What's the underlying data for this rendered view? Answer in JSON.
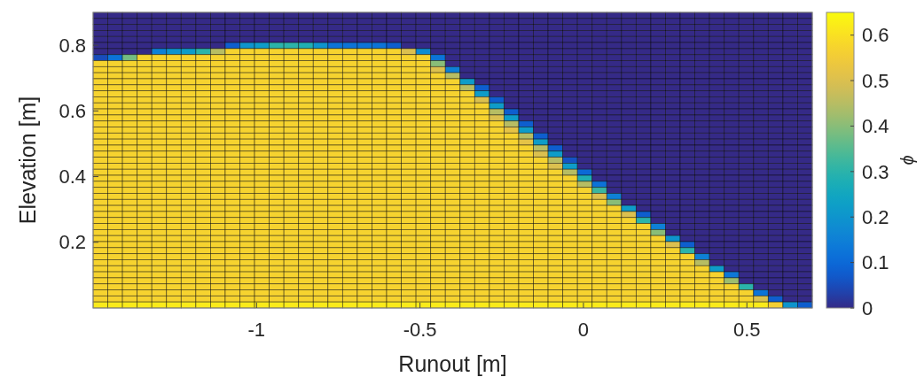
{
  "chart_data": {
    "type": "heatmap",
    "xlabel": "Runout [m]",
    "ylabel": "Elevation [m]",
    "clabel": "ϕ",
    "xlim": [
      -1.5,
      0.7
    ],
    "xticks": [
      -1,
      -0.5,
      0,
      0.5
    ],
    "ylim": [
      0,
      0.9
    ],
    "yticks": [
      0.2,
      0.4,
      0.6,
      0.8
    ],
    "clim": [
      0,
      0.65
    ],
    "cticks": [
      0,
      0.1,
      0.2,
      0.3,
      0.4,
      0.5,
      0.6
    ],
    "cells": [
      [
        0,
        0,
        0,
        0,
        0,
        0,
        0,
        0,
        0,
        0,
        0,
        0,
        0,
        0,
        0,
        0,
        0,
        0,
        0,
        0,
        0,
        0,
        0,
        0,
        0,
        0,
        0,
        0,
        0,
        0,
        0,
        0,
        0,
        0,
        0,
        0,
        0,
        0,
        0,
        0,
        0,
        0,
        0,
        0,
        0,
        0,
        0,
        0,
        0
      ],
      [
        0,
        0,
        0,
        0,
        0,
        0,
        0,
        0,
        0,
        0,
        0,
        0,
        0,
        0,
        0,
        0,
        0,
        0,
        0,
        0,
        0,
        0,
        0,
        0,
        0,
        0,
        0,
        0,
        0,
        0,
        0,
        0,
        0,
        0,
        0,
        0,
        0,
        0,
        0,
        0,
        0,
        0,
        0,
        0,
        0,
        0,
        0,
        0,
        0
      ],
      [
        0,
        0,
        0,
        0,
        0,
        0,
        0,
        0,
        0,
        0,
        0,
        0,
        0,
        0,
        0,
        0,
        0,
        0,
        0,
        0,
        0,
        0,
        0,
        0,
        0,
        0,
        0,
        0,
        0,
        0,
        0,
        0,
        0,
        0,
        0,
        0,
        0,
        0,
        0,
        0,
        0,
        0,
        0,
        0,
        0,
        0,
        0,
        0,
        0
      ],
      [
        0,
        0,
        0,
        0,
        0,
        0,
        0,
        0,
        0,
        0,
        0,
        0,
        0,
        0,
        0,
        0,
        0,
        0,
        0,
        0,
        0,
        0,
        0,
        0,
        0,
        0,
        0,
        0,
        0,
        0,
        0,
        0,
        0,
        0,
        0,
        0,
        0,
        0,
        0,
        0,
        0,
        0,
        0,
        0,
        0,
        0,
        0,
        0,
        0
      ],
      [
        0,
        0,
        0,
        0,
        0,
        0,
        0,
        0,
        0,
        0,
        0,
        0,
        0,
        0,
        0,
        0,
        0,
        0,
        0,
        0,
        0,
        0,
        0,
        0,
        0,
        0,
        0,
        0,
        0,
        0,
        0,
        0,
        0,
        0,
        0,
        0,
        0,
        0,
        0,
        0,
        0,
        0,
        0,
        0,
        0,
        0,
        0,
        0,
        0
      ],
      [
        0,
        0,
        0,
        0,
        0,
        0,
        0,
        0,
        0,
        0.08,
        0.2,
        0.22,
        0.3,
        0.3,
        0.28,
        0.2,
        0.12,
        0.12,
        0.12,
        0.12,
        0.08,
        0,
        0,
        0,
        0,
        0,
        0,
        0,
        0,
        0,
        0,
        0,
        0,
        0,
        0,
        0,
        0,
        0,
        0,
        0,
        0,
        0,
        0,
        0,
        0,
        0,
        0,
        0,
        0
      ],
      [
        0,
        0,
        0,
        0,
        0.15,
        0.2,
        0.22,
        0.3,
        0.45,
        0.57,
        0.57,
        0.57,
        0.57,
        0.57,
        0.57,
        0.57,
        0.57,
        0.57,
        0.57,
        0.57,
        0.57,
        0.5,
        0.18,
        0,
        0,
        0,
        0,
        0,
        0,
        0,
        0,
        0,
        0,
        0,
        0,
        0,
        0,
        0,
        0,
        0,
        0,
        0,
        0,
        0,
        0,
        0,
        0,
        0,
        0
      ],
      [
        0.05,
        0.12,
        0.38,
        0.57,
        0.57,
        0.57,
        0.57,
        0.57,
        0.57,
        0.57,
        0.57,
        0.57,
        0.57,
        0.57,
        0.57,
        0.57,
        0.57,
        0.57,
        0.57,
        0.57,
        0.57,
        0.57,
        0.57,
        0.12,
        0,
        0,
        0,
        0,
        0,
        0,
        0,
        0,
        0,
        0,
        0,
        0,
        0,
        0,
        0,
        0,
        0,
        0,
        0,
        0,
        0,
        0,
        0,
        0,
        0
      ],
      [
        0.57,
        0.57,
        0.57,
        0.57,
        0.57,
        0.57,
        0.57,
        0.57,
        0.57,
        0.57,
        0.57,
        0.57,
        0.57,
        0.57,
        0.57,
        0.57,
        0.57,
        0.57,
        0.57,
        0.57,
        0.57,
        0.57,
        0.57,
        0.4,
        0,
        0,
        0,
        0,
        0,
        0,
        0,
        0,
        0,
        0,
        0,
        0,
        0,
        0,
        0,
        0,
        0,
        0,
        0,
        0,
        0,
        0,
        0,
        0,
        0
      ],
      [
        0.57,
        0.57,
        0.57,
        0.57,
        0.57,
        0.57,
        0.57,
        0.57,
        0.57,
        0.57,
        0.57,
        0.57,
        0.57,
        0.57,
        0.57,
        0.57,
        0.57,
        0.57,
        0.57,
        0.57,
        0.57,
        0.57,
        0.57,
        0.5,
        0.15,
        0,
        0,
        0,
        0,
        0,
        0,
        0,
        0,
        0,
        0,
        0,
        0,
        0,
        0,
        0,
        0,
        0,
        0,
        0,
        0,
        0,
        0,
        0,
        0
      ],
      [
        0.57,
        0.57,
        0.57,
        0.57,
        0.57,
        0.57,
        0.57,
        0.57,
        0.57,
        0.57,
        0.57,
        0.57,
        0.57,
        0.57,
        0.57,
        0.57,
        0.57,
        0.57,
        0.57,
        0.57,
        0.57,
        0.57,
        0.57,
        0.57,
        0.45,
        0,
        0,
        0,
        0,
        0,
        0,
        0,
        0,
        0,
        0,
        0,
        0,
        0,
        0,
        0,
        0,
        0,
        0,
        0,
        0,
        0,
        0,
        0,
        0
      ],
      [
        0.57,
        0.57,
        0.57,
        0.57,
        0.57,
        0.57,
        0.57,
        0.57,
        0.57,
        0.57,
        0.57,
        0.57,
        0.57,
        0.57,
        0.57,
        0.57,
        0.57,
        0.57,
        0.57,
        0.57,
        0.57,
        0.57,
        0.57,
        0.57,
        0.57,
        0.22,
        0,
        0,
        0,
        0,
        0,
        0,
        0,
        0,
        0,
        0,
        0,
        0,
        0,
        0,
        0,
        0,
        0,
        0,
        0,
        0,
        0,
        0,
        0
      ],
      [
        0.57,
        0.57,
        0.57,
        0.57,
        0.57,
        0.57,
        0.57,
        0.57,
        0.57,
        0.57,
        0.57,
        0.57,
        0.57,
        0.57,
        0.57,
        0.57,
        0.57,
        0.57,
        0.57,
        0.57,
        0.57,
        0.57,
        0.57,
        0.57,
        0.57,
        0.45,
        0.08,
        0,
        0,
        0,
        0,
        0,
        0,
        0,
        0,
        0,
        0,
        0,
        0,
        0,
        0,
        0,
        0,
        0,
        0,
        0,
        0,
        0,
        0
      ],
      [
        0.57,
        0.57,
        0.57,
        0.57,
        0.57,
        0.57,
        0.57,
        0.57,
        0.57,
        0.57,
        0.57,
        0.57,
        0.57,
        0.57,
        0.57,
        0.57,
        0.57,
        0.57,
        0.57,
        0.57,
        0.57,
        0.57,
        0.57,
        0.57,
        0.57,
        0.57,
        0.22,
        0,
        0,
        0,
        0,
        0,
        0,
        0,
        0,
        0,
        0,
        0,
        0,
        0,
        0,
        0,
        0,
        0,
        0,
        0,
        0,
        0,
        0
      ],
      [
        0.57,
        0.57,
        0.57,
        0.57,
        0.57,
        0.57,
        0.57,
        0.57,
        0.57,
        0.57,
        0.57,
        0.57,
        0.57,
        0.57,
        0.57,
        0.57,
        0.57,
        0.57,
        0.57,
        0.57,
        0.57,
        0.57,
        0.57,
        0.57,
        0.57,
        0.57,
        0.5,
        0.08,
        0,
        0,
        0,
        0,
        0,
        0,
        0,
        0,
        0,
        0,
        0,
        0,
        0,
        0,
        0,
        0,
        0,
        0,
        0,
        0,
        0
      ],
      [
        0.57,
        0.57,
        0.57,
        0.57,
        0.57,
        0.57,
        0.57,
        0.57,
        0.57,
        0.57,
        0.57,
        0.57,
        0.57,
        0.57,
        0.57,
        0.57,
        0.57,
        0.57,
        0.57,
        0.57,
        0.57,
        0.57,
        0.57,
        0.57,
        0.57,
        0.57,
        0.57,
        0.22,
        0,
        0,
        0,
        0,
        0,
        0,
        0,
        0,
        0,
        0,
        0,
        0,
        0,
        0,
        0,
        0,
        0,
        0,
        0,
        0,
        0
      ],
      [
        0.57,
        0.57,
        0.57,
        0.57,
        0.57,
        0.57,
        0.57,
        0.57,
        0.57,
        0.57,
        0.57,
        0.57,
        0.57,
        0.57,
        0.57,
        0.57,
        0.57,
        0.57,
        0.57,
        0.57,
        0.57,
        0.57,
        0.57,
        0.57,
        0.57,
        0.57,
        0.57,
        0.45,
        0.08,
        0,
        0,
        0,
        0,
        0,
        0,
        0,
        0,
        0,
        0,
        0,
        0,
        0,
        0,
        0,
        0,
        0,
        0,
        0,
        0
      ],
      [
        0.57,
        0.57,
        0.57,
        0.57,
        0.57,
        0.57,
        0.57,
        0.57,
        0.57,
        0.57,
        0.57,
        0.57,
        0.57,
        0.57,
        0.57,
        0.57,
        0.57,
        0.57,
        0.57,
        0.57,
        0.57,
        0.57,
        0.57,
        0.57,
        0.57,
        0.57,
        0.57,
        0.5,
        0.22,
        0,
        0,
        0,
        0,
        0,
        0,
        0,
        0,
        0,
        0,
        0,
        0,
        0,
        0,
        0,
        0,
        0,
        0,
        0,
        0
      ],
      [
        0.57,
        0.57,
        0.57,
        0.57,
        0.57,
        0.57,
        0.57,
        0.57,
        0.57,
        0.57,
        0.57,
        0.57,
        0.57,
        0.57,
        0.57,
        0.57,
        0.57,
        0.57,
        0.57,
        0.57,
        0.57,
        0.57,
        0.57,
        0.57,
        0.57,
        0.57,
        0.57,
        0.57,
        0.45,
        0.08,
        0,
        0,
        0,
        0,
        0,
        0,
        0,
        0,
        0,
        0,
        0,
        0,
        0,
        0,
        0,
        0,
        0,
        0,
        0
      ],
      [
        0.57,
        0.57,
        0.57,
        0.57,
        0.57,
        0.57,
        0.57,
        0.57,
        0.57,
        0.57,
        0.57,
        0.57,
        0.57,
        0.57,
        0.57,
        0.57,
        0.57,
        0.57,
        0.57,
        0.57,
        0.57,
        0.57,
        0.57,
        0.57,
        0.57,
        0.57,
        0.57,
        0.57,
        0.52,
        0.22,
        0,
        0,
        0,
        0,
        0,
        0,
        0,
        0,
        0,
        0,
        0,
        0,
        0,
        0,
        0,
        0,
        0,
        0,
        0
      ],
      [
        0.57,
        0.57,
        0.57,
        0.57,
        0.57,
        0.57,
        0.57,
        0.57,
        0.57,
        0.57,
        0.57,
        0.57,
        0.57,
        0.57,
        0.57,
        0.57,
        0.57,
        0.57,
        0.57,
        0.57,
        0.57,
        0.57,
        0.57,
        0.57,
        0.57,
        0.57,
        0.57,
        0.57,
        0.57,
        0.45,
        0.08,
        0,
        0,
        0,
        0,
        0,
        0,
        0,
        0,
        0,
        0,
        0,
        0,
        0,
        0,
        0,
        0,
        0,
        0
      ],
      [
        0.57,
        0.57,
        0.57,
        0.57,
        0.57,
        0.57,
        0.57,
        0.57,
        0.57,
        0.57,
        0.57,
        0.57,
        0.57,
        0.57,
        0.57,
        0.57,
        0.57,
        0.57,
        0.57,
        0.57,
        0.57,
        0.57,
        0.57,
        0.57,
        0.57,
        0.57,
        0.57,
        0.57,
        0.57,
        0.52,
        0.22,
        0,
        0,
        0,
        0,
        0,
        0,
        0,
        0,
        0,
        0,
        0,
        0,
        0,
        0,
        0,
        0,
        0,
        0
      ],
      [
        0.57,
        0.57,
        0.57,
        0.57,
        0.57,
        0.57,
        0.57,
        0.57,
        0.57,
        0.57,
        0.57,
        0.57,
        0.57,
        0.57,
        0.57,
        0.57,
        0.57,
        0.57,
        0.57,
        0.57,
        0.57,
        0.57,
        0.57,
        0.57,
        0.57,
        0.57,
        0.57,
        0.57,
        0.57,
        0.57,
        0.45,
        0.08,
        0,
        0,
        0,
        0,
        0,
        0,
        0,
        0,
        0,
        0,
        0,
        0,
        0,
        0,
        0,
        0,
        0
      ],
      [
        0.57,
        0.57,
        0.57,
        0.57,
        0.57,
        0.57,
        0.57,
        0.57,
        0.57,
        0.57,
        0.57,
        0.57,
        0.57,
        0.57,
        0.57,
        0.57,
        0.57,
        0.57,
        0.57,
        0.57,
        0.57,
        0.57,
        0.57,
        0.57,
        0.57,
        0.57,
        0.57,
        0.57,
        0.57,
        0.57,
        0.5,
        0.22,
        0,
        0,
        0,
        0,
        0,
        0,
        0,
        0,
        0,
        0,
        0,
        0,
        0,
        0,
        0,
        0,
        0
      ],
      [
        0.57,
        0.57,
        0.57,
        0.57,
        0.57,
        0.57,
        0.57,
        0.57,
        0.57,
        0.57,
        0.57,
        0.57,
        0.57,
        0.57,
        0.57,
        0.57,
        0.57,
        0.57,
        0.57,
        0.57,
        0.57,
        0.57,
        0.57,
        0.57,
        0.57,
        0.57,
        0.57,
        0.57,
        0.57,
        0.57,
        0.57,
        0.45,
        0.06,
        0,
        0,
        0,
        0,
        0,
        0,
        0,
        0,
        0,
        0,
        0,
        0,
        0,
        0,
        0,
        0
      ],
      [
        0.57,
        0.57,
        0.57,
        0.57,
        0.57,
        0.57,
        0.57,
        0.57,
        0.57,
        0.57,
        0.57,
        0.57,
        0.57,
        0.57,
        0.57,
        0.57,
        0.57,
        0.57,
        0.57,
        0.57,
        0.57,
        0.57,
        0.57,
        0.57,
        0.57,
        0.57,
        0.57,
        0.57,
        0.57,
        0.57,
        0.57,
        0.5,
        0.22,
        0,
        0,
        0,
        0,
        0,
        0,
        0,
        0,
        0,
        0,
        0,
        0,
        0,
        0,
        0,
        0
      ],
      [
        0.57,
        0.57,
        0.57,
        0.57,
        0.57,
        0.57,
        0.57,
        0.57,
        0.57,
        0.57,
        0.57,
        0.57,
        0.57,
        0.57,
        0.57,
        0.57,
        0.57,
        0.57,
        0.57,
        0.57,
        0.57,
        0.57,
        0.57,
        0.57,
        0.57,
        0.57,
        0.57,
        0.57,
        0.57,
        0.57,
        0.57,
        0.57,
        0.45,
        0.1,
        0,
        0,
        0,
        0,
        0,
        0,
        0,
        0,
        0,
        0,
        0,
        0,
        0,
        0,
        0
      ],
      [
        0.57,
        0.57,
        0.57,
        0.57,
        0.57,
        0.57,
        0.57,
        0.57,
        0.57,
        0.57,
        0.57,
        0.57,
        0.57,
        0.57,
        0.57,
        0.57,
        0.57,
        0.57,
        0.57,
        0.57,
        0.57,
        0.57,
        0.57,
        0.57,
        0.57,
        0.57,
        0.57,
        0.57,
        0.57,
        0.57,
        0.57,
        0.57,
        0.57,
        0.28,
        0,
        0,
        0,
        0,
        0,
        0,
        0,
        0,
        0,
        0,
        0,
        0,
        0,
        0,
        0
      ],
      [
        0.57,
        0.57,
        0.57,
        0.57,
        0.57,
        0.57,
        0.57,
        0.57,
        0.57,
        0.57,
        0.57,
        0.57,
        0.57,
        0.57,
        0.57,
        0.57,
        0.57,
        0.57,
        0.57,
        0.57,
        0.57,
        0.57,
        0.57,
        0.57,
        0.57,
        0.57,
        0.57,
        0.57,
        0.57,
        0.57,
        0.57,
        0.57,
        0.57,
        0.45,
        0.12,
        0,
        0,
        0,
        0,
        0,
        0,
        0,
        0,
        0,
        0,
        0,
        0,
        0,
        0
      ],
      [
        0.57,
        0.57,
        0.57,
        0.57,
        0.57,
        0.57,
        0.57,
        0.57,
        0.57,
        0.57,
        0.57,
        0.57,
        0.57,
        0.57,
        0.57,
        0.57,
        0.57,
        0.57,
        0.57,
        0.57,
        0.57,
        0.57,
        0.57,
        0.57,
        0.57,
        0.57,
        0.57,
        0.57,
        0.57,
        0.57,
        0.57,
        0.57,
        0.57,
        0.57,
        0.32,
        0,
        0,
        0,
        0,
        0,
        0,
        0,
        0,
        0,
        0,
        0,
        0,
        0,
        0
      ],
      [
        0.57,
        0.57,
        0.57,
        0.57,
        0.57,
        0.57,
        0.57,
        0.57,
        0.57,
        0.57,
        0.57,
        0.57,
        0.57,
        0.57,
        0.57,
        0.57,
        0.57,
        0.57,
        0.57,
        0.57,
        0.57,
        0.57,
        0.57,
        0.57,
        0.57,
        0.57,
        0.57,
        0.57,
        0.57,
        0.57,
        0.57,
        0.57,
        0.57,
        0.57,
        0.5,
        0.15,
        0,
        0,
        0,
        0,
        0,
        0,
        0,
        0,
        0,
        0,
        0,
        0,
        0
      ],
      [
        0.57,
        0.57,
        0.57,
        0.57,
        0.57,
        0.57,
        0.57,
        0.57,
        0.57,
        0.57,
        0.57,
        0.57,
        0.57,
        0.57,
        0.57,
        0.57,
        0.57,
        0.57,
        0.57,
        0.57,
        0.57,
        0.57,
        0.57,
        0.57,
        0.57,
        0.57,
        0.57,
        0.57,
        0.57,
        0.57,
        0.57,
        0.57,
        0.57,
        0.57,
        0.57,
        0.4,
        0,
        0,
        0,
        0,
        0,
        0,
        0,
        0,
        0,
        0,
        0,
        0,
        0
      ],
      [
        0.57,
        0.57,
        0.57,
        0.57,
        0.57,
        0.57,
        0.57,
        0.57,
        0.57,
        0.57,
        0.57,
        0.57,
        0.57,
        0.57,
        0.57,
        0.57,
        0.57,
        0.57,
        0.57,
        0.57,
        0.57,
        0.57,
        0.57,
        0.57,
        0.57,
        0.57,
        0.57,
        0.57,
        0.57,
        0.57,
        0.57,
        0.57,
        0.57,
        0.57,
        0.57,
        0.57,
        0.22,
        0,
        0,
        0,
        0,
        0,
        0,
        0,
        0,
        0,
        0,
        0,
        0
      ],
      [
        0.57,
        0.57,
        0.57,
        0.57,
        0.57,
        0.57,
        0.57,
        0.57,
        0.57,
        0.57,
        0.57,
        0.57,
        0.57,
        0.57,
        0.57,
        0.57,
        0.57,
        0.57,
        0.57,
        0.57,
        0.57,
        0.57,
        0.57,
        0.57,
        0.57,
        0.57,
        0.57,
        0.57,
        0.57,
        0.57,
        0.57,
        0.57,
        0.57,
        0.57,
        0.57,
        0.57,
        0.5,
        0.08,
        0,
        0,
        0,
        0,
        0,
        0,
        0,
        0,
        0,
        0,
        0
      ],
      [
        0.57,
        0.57,
        0.57,
        0.57,
        0.57,
        0.57,
        0.57,
        0.57,
        0.57,
        0.57,
        0.57,
        0.57,
        0.57,
        0.57,
        0.57,
        0.57,
        0.57,
        0.57,
        0.57,
        0.57,
        0.57,
        0.57,
        0.57,
        0.57,
        0.57,
        0.57,
        0.57,
        0.57,
        0.57,
        0.57,
        0.57,
        0.57,
        0.57,
        0.57,
        0.57,
        0.57,
        0.57,
        0.3,
        0,
        0,
        0,
        0,
        0,
        0,
        0,
        0,
        0,
        0,
        0
      ],
      [
        0.57,
        0.57,
        0.57,
        0.57,
        0.57,
        0.57,
        0.57,
        0.57,
        0.57,
        0.57,
        0.57,
        0.57,
        0.57,
        0.57,
        0.57,
        0.57,
        0.57,
        0.57,
        0.57,
        0.57,
        0.57,
        0.57,
        0.57,
        0.57,
        0.57,
        0.57,
        0.57,
        0.57,
        0.57,
        0.57,
        0.57,
        0.57,
        0.57,
        0.57,
        0.57,
        0.57,
        0.57,
        0.57,
        0.15,
        0,
        0,
        0,
        0,
        0,
        0,
        0,
        0,
        0,
        0
      ],
      [
        0.57,
        0.57,
        0.57,
        0.57,
        0.57,
        0.57,
        0.57,
        0.57,
        0.57,
        0.57,
        0.57,
        0.57,
        0.57,
        0.57,
        0.57,
        0.57,
        0.57,
        0.57,
        0.57,
        0.57,
        0.57,
        0.57,
        0.57,
        0.57,
        0.57,
        0.57,
        0.57,
        0.57,
        0.57,
        0.57,
        0.57,
        0.57,
        0.57,
        0.57,
        0.57,
        0.57,
        0.57,
        0.57,
        0.4,
        0,
        0,
        0,
        0,
        0,
        0,
        0,
        0,
        0,
        0
      ],
      [
        0.57,
        0.57,
        0.57,
        0.57,
        0.57,
        0.57,
        0.57,
        0.57,
        0.57,
        0.57,
        0.57,
        0.57,
        0.57,
        0.57,
        0.57,
        0.57,
        0.57,
        0.57,
        0.57,
        0.57,
        0.57,
        0.57,
        0.57,
        0.57,
        0.57,
        0.57,
        0.57,
        0.57,
        0.57,
        0.57,
        0.57,
        0.57,
        0.57,
        0.57,
        0.57,
        0.57,
        0.57,
        0.57,
        0.57,
        0.2,
        0,
        0,
        0,
        0,
        0,
        0,
        0,
        0,
        0
      ],
      [
        0.57,
        0.57,
        0.57,
        0.57,
        0.57,
        0.57,
        0.57,
        0.57,
        0.57,
        0.57,
        0.57,
        0.57,
        0.57,
        0.57,
        0.57,
        0.57,
        0.57,
        0.57,
        0.57,
        0.57,
        0.57,
        0.57,
        0.57,
        0.57,
        0.57,
        0.57,
        0.57,
        0.57,
        0.57,
        0.57,
        0.57,
        0.57,
        0.57,
        0.57,
        0.57,
        0.57,
        0.57,
        0.57,
        0.57,
        0.5,
        0.08,
        0,
        0,
        0,
        0,
        0,
        0,
        0,
        0
      ],
      [
        0.57,
        0.57,
        0.57,
        0.57,
        0.57,
        0.57,
        0.57,
        0.57,
        0.57,
        0.57,
        0.57,
        0.57,
        0.57,
        0.57,
        0.57,
        0.57,
        0.57,
        0.57,
        0.57,
        0.57,
        0.57,
        0.57,
        0.57,
        0.57,
        0.57,
        0.57,
        0.57,
        0.57,
        0.57,
        0.57,
        0.57,
        0.57,
        0.57,
        0.57,
        0.57,
        0.57,
        0.57,
        0.57,
        0.57,
        0.57,
        0.3,
        0,
        0,
        0,
        0,
        0,
        0,
        0,
        0
      ],
      [
        0.57,
        0.57,
        0.57,
        0.57,
        0.57,
        0.57,
        0.57,
        0.57,
        0.57,
        0.57,
        0.57,
        0.57,
        0.57,
        0.57,
        0.57,
        0.57,
        0.57,
        0.57,
        0.57,
        0.57,
        0.57,
        0.57,
        0.57,
        0.57,
        0.57,
        0.57,
        0.57,
        0.57,
        0.57,
        0.57,
        0.57,
        0.57,
        0.57,
        0.57,
        0.57,
        0.57,
        0.57,
        0.57,
        0.57,
        0.57,
        0.57,
        0.15,
        0,
        0,
        0,
        0,
        0,
        0,
        0
      ],
      [
        0.57,
        0.57,
        0.57,
        0.57,
        0.57,
        0.57,
        0.57,
        0.57,
        0.57,
        0.57,
        0.57,
        0.57,
        0.57,
        0.57,
        0.57,
        0.57,
        0.57,
        0.57,
        0.57,
        0.57,
        0.57,
        0.57,
        0.57,
        0.57,
        0.57,
        0.57,
        0.57,
        0.57,
        0.57,
        0.57,
        0.57,
        0.57,
        0.57,
        0.57,
        0.57,
        0.57,
        0.57,
        0.57,
        0.57,
        0.57,
        0.57,
        0.45,
        0,
        0,
        0,
        0,
        0,
        0,
        0
      ],
      [
        0.57,
        0.57,
        0.57,
        0.57,
        0.57,
        0.57,
        0.57,
        0.57,
        0.57,
        0.57,
        0.57,
        0.57,
        0.57,
        0.57,
        0.57,
        0.57,
        0.57,
        0.57,
        0.57,
        0.57,
        0.57,
        0.57,
        0.57,
        0.57,
        0.57,
        0.57,
        0.57,
        0.57,
        0.57,
        0.57,
        0.57,
        0.57,
        0.57,
        0.57,
        0.57,
        0.57,
        0.57,
        0.57,
        0.57,
        0.57,
        0.57,
        0.57,
        0.22,
        0,
        0,
        0,
        0,
        0,
        0
      ],
      [
        0.57,
        0.57,
        0.57,
        0.57,
        0.57,
        0.57,
        0.57,
        0.57,
        0.57,
        0.57,
        0.57,
        0.57,
        0.57,
        0.57,
        0.57,
        0.57,
        0.57,
        0.57,
        0.57,
        0.57,
        0.57,
        0.57,
        0.57,
        0.57,
        0.57,
        0.57,
        0.57,
        0.57,
        0.57,
        0.57,
        0.57,
        0.57,
        0.57,
        0.57,
        0.57,
        0.57,
        0.57,
        0.57,
        0.57,
        0.57,
        0.57,
        0.57,
        0.57,
        0.13,
        0,
        0,
        0,
        0,
        0
      ],
      [
        0.57,
        0.57,
        0.57,
        0.57,
        0.57,
        0.57,
        0.57,
        0.57,
        0.57,
        0.57,
        0.57,
        0.57,
        0.57,
        0.57,
        0.57,
        0.57,
        0.57,
        0.57,
        0.57,
        0.57,
        0.57,
        0.57,
        0.57,
        0.57,
        0.57,
        0.57,
        0.57,
        0.57,
        0.57,
        0.57,
        0.57,
        0.57,
        0.57,
        0.57,
        0.57,
        0.57,
        0.57,
        0.57,
        0.57,
        0.57,
        0.57,
        0.57,
        0.57,
        0.42,
        0,
        0,
        0,
        0,
        0
      ],
      [
        0.57,
        0.57,
        0.57,
        0.57,
        0.57,
        0.57,
        0.57,
        0.57,
        0.57,
        0.57,
        0.57,
        0.57,
        0.57,
        0.57,
        0.57,
        0.57,
        0.57,
        0.57,
        0.57,
        0.57,
        0.57,
        0.57,
        0.57,
        0.57,
        0.57,
        0.57,
        0.57,
        0.57,
        0.57,
        0.57,
        0.57,
        0.57,
        0.57,
        0.57,
        0.57,
        0.57,
        0.57,
        0.57,
        0.57,
        0.57,
        0.57,
        0.57,
        0.57,
        0.57,
        0.3,
        0,
        0,
        0,
        0
      ],
      [
        0.57,
        0.57,
        0.57,
        0.57,
        0.57,
        0.57,
        0.57,
        0.57,
        0.57,
        0.57,
        0.57,
        0.57,
        0.57,
        0.57,
        0.57,
        0.57,
        0.57,
        0.57,
        0.57,
        0.57,
        0.57,
        0.57,
        0.57,
        0.57,
        0.57,
        0.57,
        0.57,
        0.57,
        0.57,
        0.57,
        0.57,
        0.57,
        0.57,
        0.57,
        0.57,
        0.57,
        0.57,
        0.57,
        0.57,
        0.57,
        0.57,
        0.57,
        0.57,
        0.57,
        0.57,
        0.12,
        0,
        0,
        0
      ],
      [
        0.57,
        0.57,
        0.57,
        0.57,
        0.57,
        0.57,
        0.57,
        0.57,
        0.57,
        0.57,
        0.57,
        0.57,
        0.57,
        0.57,
        0.57,
        0.57,
        0.57,
        0.57,
        0.57,
        0.57,
        0.57,
        0.57,
        0.57,
        0.57,
        0.57,
        0.57,
        0.57,
        0.57,
        0.57,
        0.57,
        0.57,
        0.57,
        0.57,
        0.57,
        0.57,
        0.57,
        0.57,
        0.57,
        0.57,
        0.57,
        0.57,
        0.57,
        0.57,
        0.57,
        0.57,
        0.5,
        0.08,
        0,
        0
      ],
      [
        0.62,
        0.62,
        0.62,
        0.62,
        0.62,
        0.62,
        0.62,
        0.62,
        0.62,
        0.62,
        0.62,
        0.62,
        0.62,
        0.62,
        0.62,
        0.62,
        0.62,
        0.62,
        0.62,
        0.62,
        0.62,
        0.62,
        0.62,
        0.62,
        0.62,
        0.62,
        0.62,
        0.62,
        0.62,
        0.62,
        0.62,
        0.62,
        0.62,
        0.62,
        0.62,
        0.62,
        0.62,
        0.62,
        0.62,
        0.62,
        0.62,
        0.62,
        0.62,
        0.62,
        0.62,
        0.62,
        0.56,
        0.2,
        0.08
      ]
    ]
  }
}
